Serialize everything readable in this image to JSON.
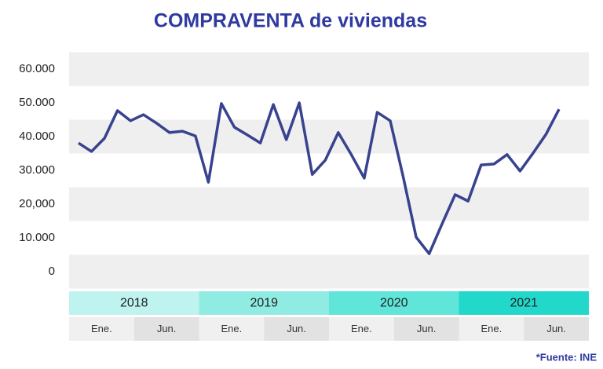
{
  "chart_data": {
    "type": "line",
    "title": "COMPRAVENTA de viviendas",
    "values": [
      38100,
      35600,
      39500,
      47700,
      44700,
      46500,
      44000,
      41200,
      41600,
      40200,
      26500,
      49800,
      42800,
      40500,
      38100,
      49500,
      39100,
      50000,
      28800,
      33000,
      41200,
      34700,
      27700,
      47200,
      44700,
      28100,
      10200,
      5300,
      14200,
      22800,
      20900,
      31600,
      31900,
      34700,
      29800,
      35100,
      40700,
      48100
    ],
    "color": "#38428f",
    "ylim": [
      -5000,
      65000
    ],
    "yticks": [
      {
        "value": 0,
        "label": "0"
      },
      {
        "value": 10000,
        "label": "10.000"
      },
      {
        "value": 20000,
        "label": "20,000"
      },
      {
        "value": 30000,
        "label": "30.000"
      },
      {
        "value": 40000,
        "label": "40.000"
      },
      {
        "value": 50000,
        "label": "50.000"
      },
      {
        "value": 60000,
        "label": "60.000"
      }
    ],
    "grid": true,
    "years": [
      {
        "label": "2018",
        "color": "#bff3f0"
      },
      {
        "label": "2019",
        "color": "#90ece3"
      },
      {
        "label": "2020",
        "color": "#60e5d9"
      },
      {
        "label": "2021",
        "color": "#22d8cb"
      }
    ],
    "halves": [
      "Ene.",
      "Jun.",
      "Ene.",
      "Jun.",
      "Ene.",
      "Jun.",
      "Ene.",
      "Jun."
    ],
    "source": "*Fuente: INE"
  }
}
